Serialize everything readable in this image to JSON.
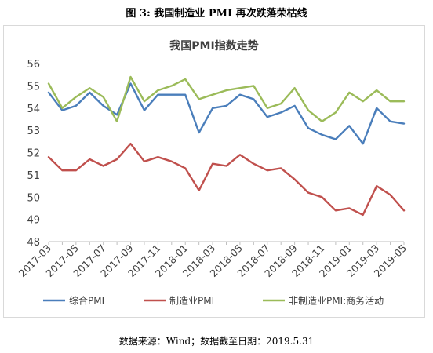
{
  "figure": {
    "caption": "图 3: 我国制造业 PMI 再次跌落荣枯线",
    "source": "数据来源：Wind；数据截至日期：2019.5.31"
  },
  "chart_data": {
    "type": "line",
    "title": "我国PMI指数走势",
    "xlabel": "",
    "ylabel": "",
    "ylim": [
      48,
      56
    ],
    "yticks": [
      48,
      49,
      50,
      51,
      52,
      53,
      54,
      55,
      56
    ],
    "grid": false,
    "legend": "bottom",
    "x": [
      "2017-03",
      "2017-04",
      "2017-05",
      "2017-06",
      "2017-07",
      "2017-08",
      "2017-09",
      "2017-10",
      "2017-11",
      "2017-12",
      "2018-01",
      "2018-02",
      "2018-03",
      "2018-04",
      "2018-05",
      "2018-06",
      "2018-07",
      "2018-08",
      "2018-09",
      "2018-10",
      "2018-11",
      "2018-12",
      "2019-01",
      "2019-02",
      "2019-03",
      "2019-04",
      "2019-05"
    ],
    "xtick_labels": [
      "2017-03",
      "2017-05",
      "2017-07",
      "2017-09",
      "2017-11",
      "2018-01",
      "2018-03",
      "2018-05",
      "2018-07",
      "2018-09",
      "2018-11",
      "2019-01",
      "2019-03",
      "2019-05"
    ],
    "series": [
      {
        "name": "综合PMI",
        "color": "#4a7ebb",
        "values": [
          54.7,
          53.9,
          54.1,
          54.7,
          54.1,
          53.7,
          55.1,
          53.9,
          54.6,
          54.6,
          54.6,
          52.9,
          54.0,
          54.1,
          54.6,
          54.4,
          53.6,
          53.8,
          54.1,
          53.1,
          52.8,
          52.6,
          53.2,
          52.4,
          54.0,
          53.4,
          53.3
        ]
      },
      {
        "name": "制造业PMI",
        "color": "#c0504d",
        "values": [
          51.8,
          51.2,
          51.2,
          51.7,
          51.4,
          51.7,
          52.4,
          51.6,
          51.8,
          51.6,
          51.3,
          50.3,
          51.5,
          51.4,
          51.9,
          51.5,
          51.2,
          51.3,
          50.8,
          50.2,
          50.0,
          49.4,
          49.5,
          49.2,
          50.5,
          50.1,
          49.4
        ]
      },
      {
        "name": "非制造业PMI:商务活动",
        "color": "#9bbb59",
        "values": [
          55.1,
          54.0,
          54.5,
          54.9,
          54.5,
          53.4,
          55.4,
          54.3,
          54.8,
          55.0,
          55.3,
          54.4,
          54.6,
          54.8,
          54.9,
          55.0,
          54.0,
          54.2,
          54.9,
          53.9,
          53.4,
          53.8,
          54.7,
          54.3,
          54.8,
          54.3,
          54.3
        ]
      }
    ]
  }
}
